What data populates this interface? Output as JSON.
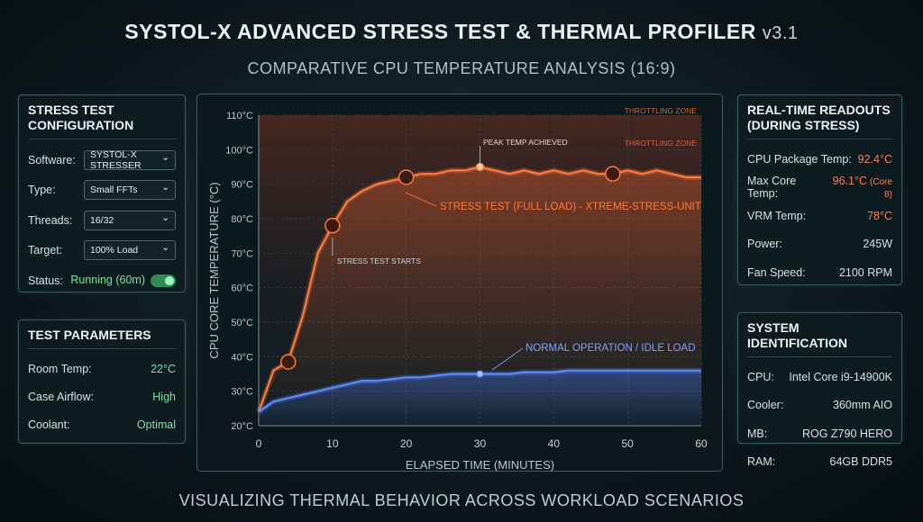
{
  "header": {
    "title": "SYSTOL-X ADVANCED STRESS TEST & THERMAL PROFILER",
    "version": "v3.1",
    "subtitle": "COMPARATIVE CPU TEMPERATURE ANALYSIS (16:9)",
    "footer": "VISUALIZING THERMAL BEHAVIOR ACROSS WORKLOAD SCENARIOS"
  },
  "config": {
    "title": [
      "STRESS TEST",
      "CONFIGURATION"
    ],
    "rows": [
      {
        "label": "Software:",
        "value": "SYSTOL-X STRESSER"
      },
      {
        "label": "Type:",
        "value": "Small FFTs"
      },
      {
        "label": "Threads:",
        "value": "16/32"
      },
      {
        "label": "Target:",
        "value": "100% Load"
      },
      {
        "label": "Status:",
        "value": "Running (60m)"
      }
    ]
  },
  "params": {
    "title": [
      "TEST PARAMETERS"
    ],
    "rows": [
      {
        "label": "Room Temp:",
        "value": "22°C"
      },
      {
        "label": "Case Airflow:",
        "value": "High"
      },
      {
        "label": "Coolant:",
        "value": "Optimal"
      }
    ]
  },
  "readouts": {
    "title": [
      "REAL-TIME READOUTS",
      "(DURING STRESS)"
    ],
    "rows": [
      {
        "label": "CPU Package Temp:",
        "value": "92.4°C"
      },
      {
        "label": "Max Core Temp:",
        "value": "96.1°C",
        "note": "(Core 8)"
      },
      {
        "label": "VRM Temp:",
        "value": "78°C"
      },
      {
        "label": "Power:",
        "value": "245W"
      },
      {
        "label": "Fan Speed:",
        "value": "2100 RPM"
      }
    ]
  },
  "system": {
    "title": [
      "SYSTEM IDENTIFICATION"
    ],
    "rows": [
      {
        "label": "CPU:",
        "value": "Intel Core i9-14900K"
      },
      {
        "label": "Cooler:",
        "value": "360mm AIO"
      },
      {
        "label": "MB:",
        "value": "ROG Z790 HERO"
      },
      {
        "label": "RAM:",
        "value": "64GB DDR5"
      }
    ]
  },
  "chart_data": {
    "type": "line",
    "x_label": "ELAPSED TIME (MINUTES)",
    "y_label": "CPU CORE TEMPERATURE (°C)",
    "x": [
      0,
      2,
      4,
      6,
      8,
      10,
      12,
      14,
      16,
      18,
      20,
      22,
      24,
      26,
      28,
      30,
      32,
      34,
      36,
      38,
      40,
      42,
      44,
      46,
      48,
      50,
      52,
      54,
      56,
      58,
      60
    ],
    "series": [
      {
        "name": "STRESS TEST (FULL LOAD) - XTREME-STRESS-UNIT",
        "color": "#ff7a3d",
        "values": [
          24,
          36,
          38.5,
          52,
          70,
          78,
          85,
          88,
          90,
          91,
          92,
          93,
          93,
          94,
          94,
          95,
          94,
          93,
          94,
          93,
          94,
          93,
          94,
          93,
          93,
          94,
          93,
          94,
          93,
          92,
          92
        ]
      },
      {
        "name": "NORMAL OPERATION / IDLE LOAD",
        "color": "#5b8cff",
        "values": [
          24,
          27,
          28,
          29,
          30,
          31,
          32,
          33,
          33,
          33.5,
          34,
          34,
          34.5,
          35,
          35,
          35,
          35,
          35,
          35.5,
          35.5,
          35.5,
          36,
          36,
          36,
          36,
          36,
          36,
          36,
          36,
          36,
          36
        ]
      }
    ],
    "annotations": [
      "THROTTLING ZONE",
      "THROTTLING ZONE",
      "PEAK TEMP ACHIEVED",
      "STRESS TEST STARTS"
    ],
    "xlim": [
      0,
      60
    ],
    "xticks": [
      0,
      10,
      20,
      30,
      40,
      50,
      60
    ],
    "ylim": [
      20,
      110
    ],
    "yticks": [
      {
        "value": 20,
        "label": "20°C"
      },
      {
        "value": 30,
        "label": "30°C"
      },
      {
        "value": 40,
        "label": "40°C"
      },
      {
        "value": 50,
        "label": "50°C"
      },
      {
        "value": 60,
        "label": "60°C"
      },
      {
        "value": 70,
        "label": "70°C"
      },
      {
        "value": 80,
        "label": "80°C"
      },
      {
        "value": 90,
        "label": "90°C"
      },
      {
        "value": 100,
        "label": "100°C"
      },
      {
        "value": 110,
        "label": "110°C"
      }
    ],
    "grid": true
  }
}
